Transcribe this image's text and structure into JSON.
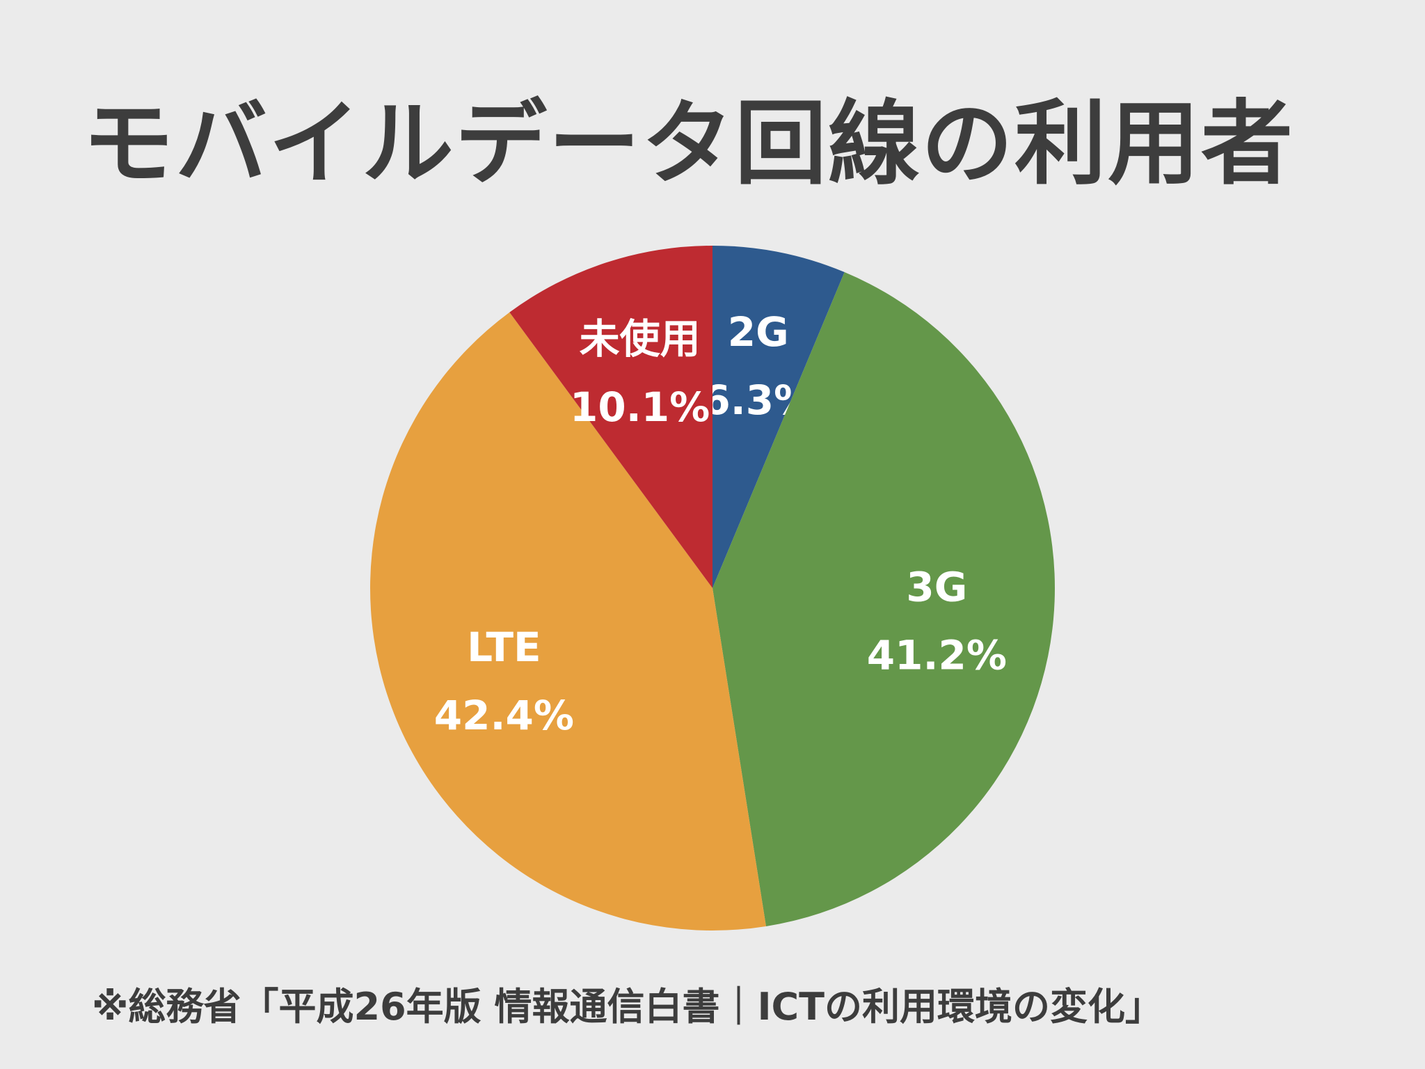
{
  "title": "モバイルデータ回線の利用者",
  "source": "※総務省「平成26年版 情報通信白書｜ICTの利用環境の変化」",
  "chart_data": {
    "type": "pie",
    "title": "モバイルデータ回線の利用者",
    "unit": "%",
    "start": "12 o'clock, clockwise",
    "slices": [
      {
        "label": "2G",
        "value": 6.3,
        "value_label": "6.3%",
        "color": "#2e5a8e"
      },
      {
        "label": "3G",
        "value": 41.2,
        "value_label": "41.2%",
        "color": "#64974a"
      },
      {
        "label": "LTE",
        "value": 42.4,
        "value_label": "42.4%",
        "color": "#e7a03f"
      },
      {
        "label": "未使用",
        "value": 10.1,
        "value_label": "10.1%",
        "color": "#be2b31"
      }
    ]
  }
}
